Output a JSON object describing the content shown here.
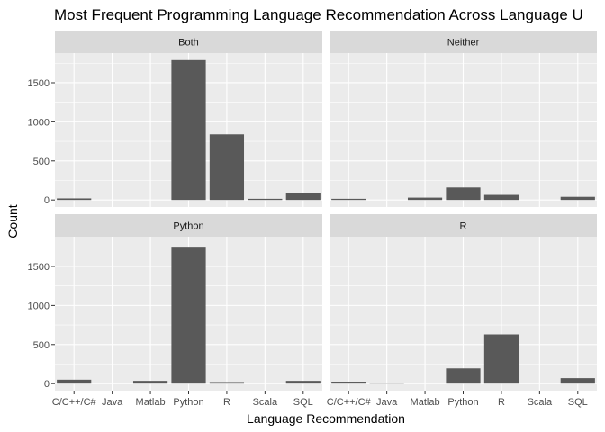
{
  "chart_data": {
    "type": "bar",
    "title": "Most Frequent Programming Language Recommendation Across Language U",
    "xlabel": "Language Recommendation",
    "ylabel": "Count",
    "categories": [
      "C/C++/C#",
      "Java",
      "Matlab",
      "Python",
      "R",
      "Scala",
      "SQL"
    ],
    "ylim": [
      -90,
      1880
    ],
    "y_ticks": [
      0,
      500,
      1000,
      1500
    ],
    "grid": true,
    "facets": [
      {
        "name": "Both",
        "values": [
          20,
          0,
          0,
          1790,
          840,
          15,
          90
        ]
      },
      {
        "name": "Neither",
        "values": [
          15,
          0,
          30,
          160,
          65,
          0,
          40
        ]
      },
      {
        "name": "Python",
        "values": [
          50,
          0,
          35,
          1740,
          20,
          0,
          35
        ]
      },
      {
        "name": "R",
        "values": [
          25,
          10,
          0,
          195,
          630,
          0,
          70
        ]
      }
    ],
    "colors": {
      "bar": "#595959",
      "panel": "#ebebeb",
      "strip": "#d9d9d9",
      "grid": "#ffffff"
    }
  }
}
